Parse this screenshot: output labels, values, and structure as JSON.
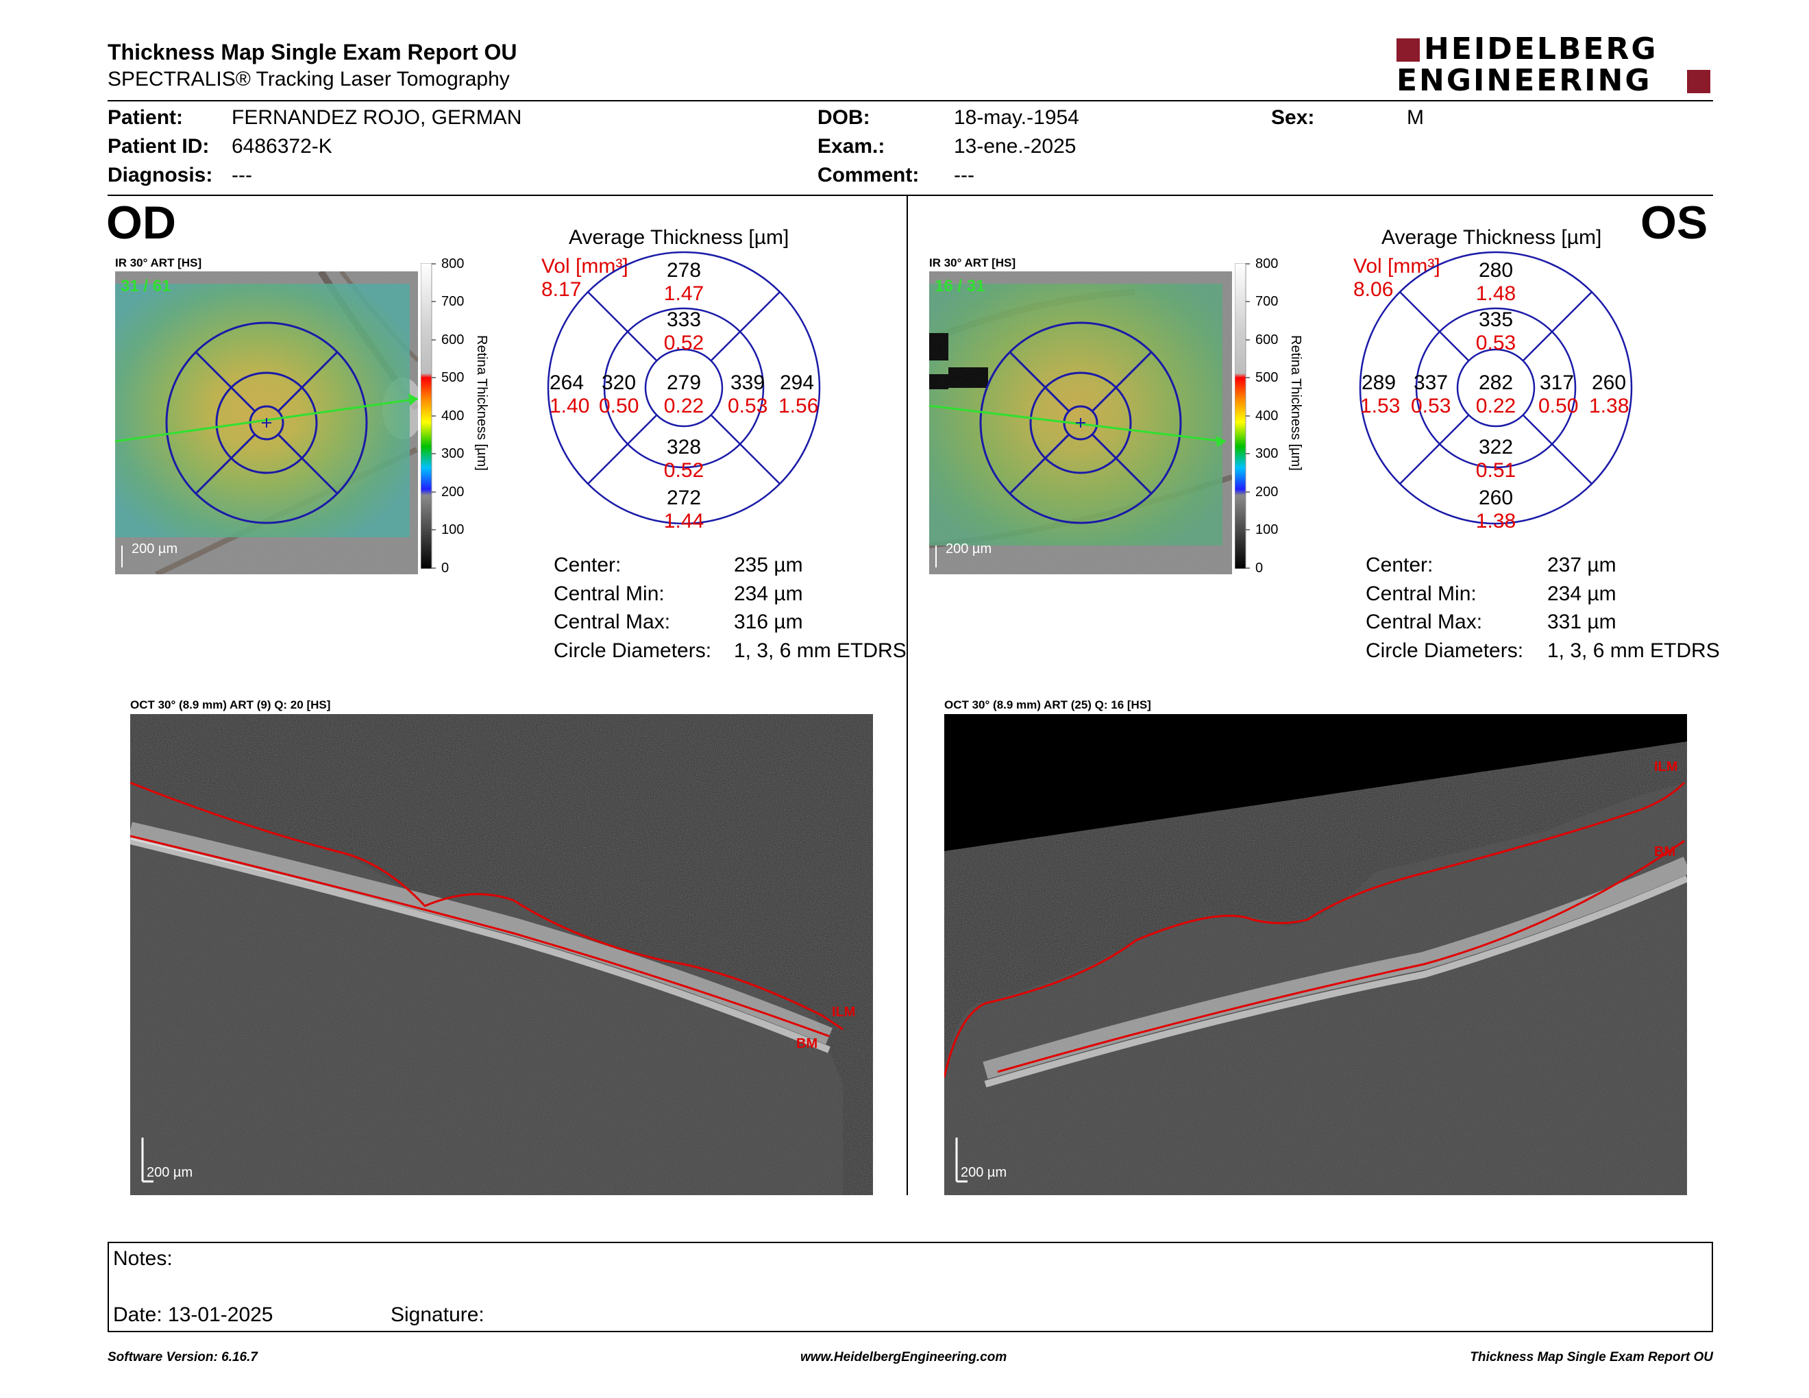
{
  "header": {
    "title": "Thickness Map Single Exam Report OU",
    "subtitle": "SPECTRALIS® Tracking Laser Tomography",
    "logo_line1": "HEIDELBERG",
    "logo_line2": "ENGINEERING"
  },
  "patient": {
    "patient_label": "Patient:",
    "patient_value": "FERNANDEZ ROJO, GERMAN",
    "id_label": "Patient ID:",
    "id_value": "6486372-K",
    "diagnosis_label": "Diagnosis:",
    "diagnosis_value": "---",
    "dob_label": "DOB:",
    "dob_value": "18-may.-1954",
    "exam_label": "Exam.:",
    "exam_value": "13-ene.-2025",
    "comment_label": "Comment:",
    "comment_value": "---",
    "sex_label": "Sex:",
    "sex_value": "M"
  },
  "colorbar": {
    "ticks": [
      "800",
      "700",
      "600",
      "500",
      "400",
      "300",
      "200",
      "100",
      "0"
    ],
    "label": "Retina Thickness [µm]",
    "colors": [
      "#ffffff",
      "#d9d9d9",
      "#bfbfbf",
      "#ff0000",
      "#ff7f00",
      "#ffff00",
      "#00c000",
      "#00bfff",
      "#1f1fff",
      "#7f7f7f",
      "#000000"
    ]
  },
  "od": {
    "eye_label": "OD",
    "ir_label": "IR 30° ART [HS]",
    "frame_counter": "31 / 61",
    "scale_label": "200 µm",
    "avg_title": "Average Thickness [µm]",
    "vol_label": "Vol [mm³]",
    "vol_value": "8.17",
    "etdrs": {
      "center": {
        "t": "279",
        "v": "0.22"
      },
      "inner_sup": {
        "t": "333",
        "v": "0.52"
      },
      "inner_inf": {
        "t": "328",
        "v": "0.52"
      },
      "inner_left": {
        "t": "320",
        "v": "0.50"
      },
      "inner_right": {
        "t": "339",
        "v": "0.53"
      },
      "outer_sup": {
        "t": "278",
        "v": "1.47"
      },
      "outer_inf": {
        "t": "272",
        "v": "1.44"
      },
      "outer_left": {
        "t": "264",
        "v": "1.40"
      },
      "outer_right": {
        "t": "294",
        "v": "1.56"
      }
    },
    "stats": {
      "center_label": "Center:",
      "center_value": "235 µm",
      "min_label": "Central Min:",
      "min_value": "234 µm",
      "max_label": "Central Max:",
      "max_value": "316 µm",
      "diam_label": "Circle Diameters:",
      "diam_value": "1, 3, 6 mm ETDRS"
    },
    "oct_label": "OCT 30° (8.9 mm) ART (9) Q: 20 [HS]",
    "oct_scale": "200 µm",
    "ilm": "ILM",
    "bm": "BM"
  },
  "os": {
    "eye_label": "OS",
    "ir_label": "IR 30° ART [HS]",
    "frame_counter": "16 / 31",
    "scale_label": "200 µm",
    "avg_title": "Average Thickness [µm]",
    "vol_label": "Vol [mm³]",
    "vol_value": "8.06",
    "etdrs": {
      "center": {
        "t": "282",
        "v": "0.22"
      },
      "inner_sup": {
        "t": "335",
        "v": "0.53"
      },
      "inner_inf": {
        "t": "322",
        "v": "0.51"
      },
      "inner_left": {
        "t": "337",
        "v": "0.53"
      },
      "inner_right": {
        "t": "317",
        "v": "0.50"
      },
      "outer_sup": {
        "t": "280",
        "v": "1.48"
      },
      "outer_inf": {
        "t": "260",
        "v": "1.38"
      },
      "outer_left": {
        "t": "289",
        "v": "1.53"
      },
      "outer_right": {
        "t": "260",
        "v": "1.38"
      }
    },
    "stats": {
      "center_label": "Center:",
      "center_value": "237 µm",
      "min_label": "Central Min:",
      "min_value": "234 µm",
      "max_label": "Central Max:",
      "max_value": "331 µm",
      "diam_label": "Circle Diameters:",
      "diam_value": "1, 3, 6 mm ETDRS"
    },
    "oct_label": "OCT 30° (8.9 mm) ART (25) Q: 16 [HS]",
    "oct_scale": "200 µm",
    "ilm": "ILM",
    "bm": "BM"
  },
  "notes": {
    "notes_label": "Notes:",
    "date_label": "Date: 13-01-2025",
    "signature_label": "Signature:"
  },
  "footer": {
    "version": "Software Version: 6.16.7",
    "url": "www.HeidelbergEngineering.com",
    "report": "Thickness Map Single Exam Report OU"
  }
}
